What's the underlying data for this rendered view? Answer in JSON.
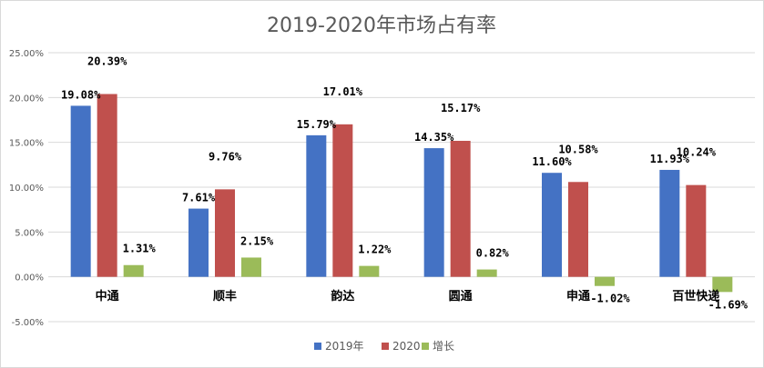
{
  "chart_data": {
    "type": "bar",
    "title": "2019-2020年市场占有率",
    "categories": [
      "中通",
      "顺丰",
      "韵达",
      "圆通",
      "申通",
      "百世快递"
    ],
    "series": [
      {
        "name": "2019年",
        "values": [
          19.08,
          7.61,
          15.79,
          14.35,
          11.6,
          11.93
        ],
        "labels": [
          "19.08%",
          "7.61%",
          "15.79%",
          "14.35%",
          "11.60%",
          "11.93%"
        ],
        "color": "#4472c4"
      },
      {
        "name": "2020",
        "values": [
          20.39,
          9.76,
          17.01,
          15.17,
          10.58,
          10.24
        ],
        "labels": [
          "20.39%",
          "9.76%",
          "17.01%",
          "15.17%",
          "10.58%",
          "10.24%"
        ],
        "color": "#c0504d"
      },
      {
        "name": "增长",
        "values": [
          1.31,
          2.15,
          1.22,
          0.82,
          -1.02,
          -1.69
        ],
        "labels": [
          "1.31%",
          "2.15%",
          "1.22%",
          "0.82%",
          "-1.02%",
          "-1.69%"
        ],
        "color": "#9bbb59"
      }
    ],
    "ylim": [
      -5,
      25
    ],
    "yticks": [
      25,
      20,
      15,
      10,
      5,
      0,
      -5
    ],
    "ytick_labels": [
      "25.00%",
      "20.00%",
      "15.00%",
      "10.00%",
      "5.00%",
      "0.00%",
      "-5.00%"
    ],
    "grid": true,
    "legend": "bottom"
  }
}
